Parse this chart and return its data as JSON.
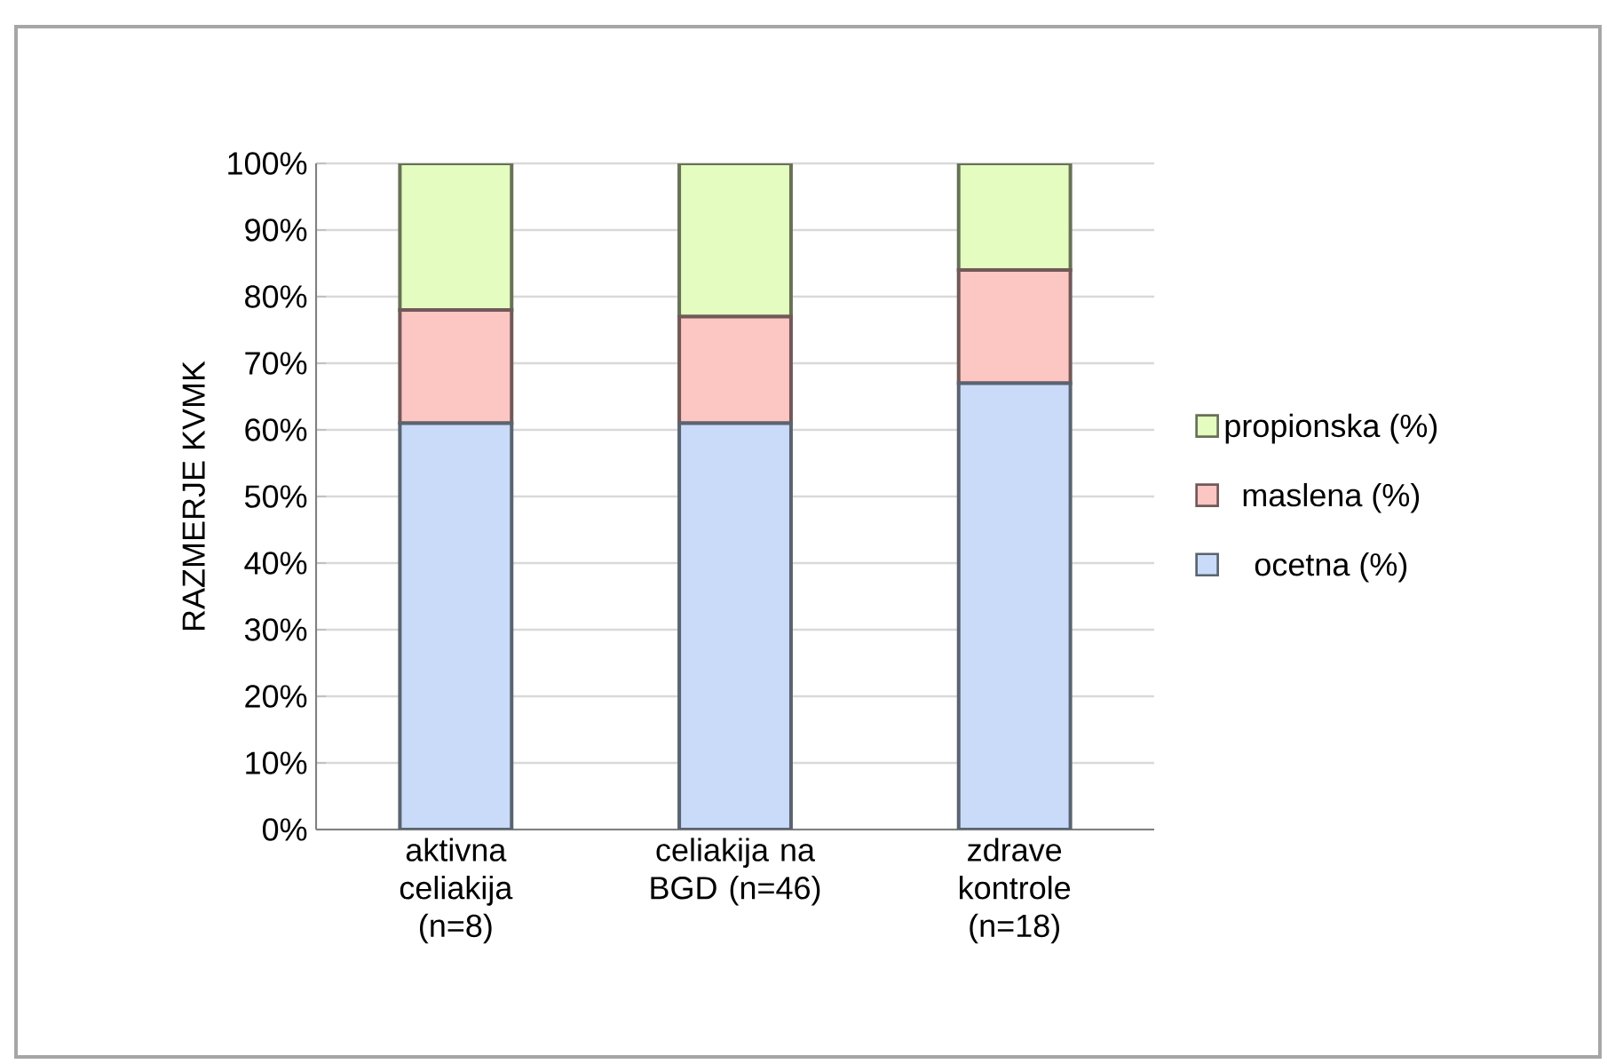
{
  "chart_data": {
    "type": "bar",
    "stacked": true,
    "ylabel": "RAZMERJE KVMK",
    "categories": [
      "aktivna celiakija (n=8)",
      "celiakija na BGD (n=46)",
      "zdrave kontrole (n=18)"
    ],
    "series": [
      {
        "name": "ocetna (%)",
        "color": "#c9dbf8",
        "values": [
          61,
          61,
          67
        ]
      },
      {
        "name": "maslena (%)",
        "color": "#fcc6c3",
        "values": [
          17,
          16,
          17
        ]
      },
      {
        "name": "propionska (%)",
        "color": "#e4fcc0",
        "values": [
          22,
          23,
          16
        ]
      }
    ],
    "ylim": [
      0,
      100
    ],
    "yticks": [
      {
        "value": 0,
        "label": "0%"
      },
      {
        "value": 10,
        "label": "10%"
      },
      {
        "value": 20,
        "label": "20%"
      },
      {
        "value": 30,
        "label": "30%"
      },
      {
        "value": 40,
        "label": "40%"
      },
      {
        "value": 50,
        "label": "50%"
      },
      {
        "value": 60,
        "label": "60%"
      },
      {
        "value": 70,
        "label": "70%"
      },
      {
        "value": 80,
        "label": "80%"
      },
      {
        "value": 90,
        "label": "90%"
      },
      {
        "value": 100,
        "label": "100%"
      }
    ],
    "grid": "y",
    "legend": "right"
  }
}
